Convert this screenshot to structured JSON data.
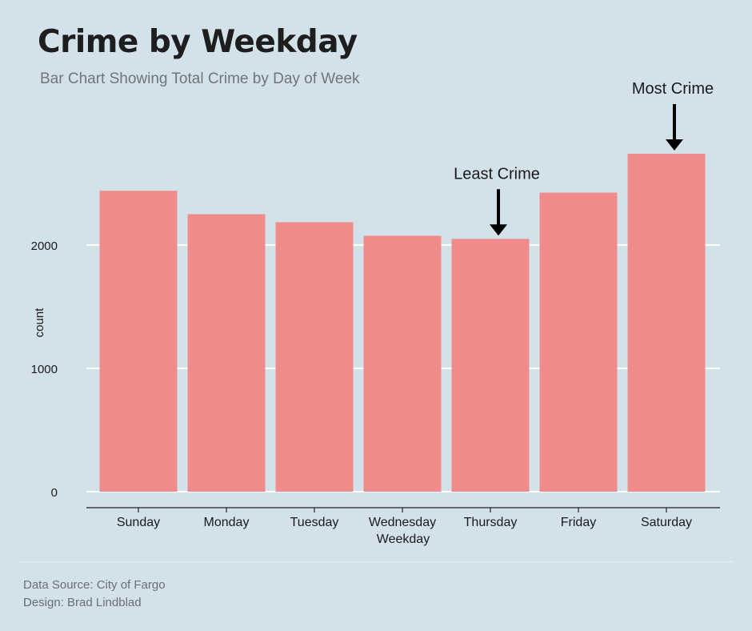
{
  "header": {
    "title": "Crime by Weekday",
    "subtitle": "Bar Chart Showing Total Crime by Day of Week"
  },
  "footer": {
    "source": "Data Source: City of Fargo",
    "design": "Design: Brad Lindblad"
  },
  "chart_data": {
    "type": "bar",
    "categories": [
      "Sunday",
      "Monday",
      "Tuesday",
      "Wednesday",
      "Thursday",
      "Friday",
      "Saturday"
    ],
    "values": [
      2440,
      2250,
      2185,
      2075,
      2050,
      2425,
      2740
    ],
    "xlabel": "Weekday",
    "ylabel": "count",
    "ylim": [
      0,
      2740
    ],
    "yticks": [
      0,
      1000,
      2000
    ],
    "grid": "horizontal",
    "bar_color": "#f08b8b",
    "annotations": [
      {
        "label": "Least Crime",
        "category": "Thursday"
      },
      {
        "label": "Most Crime",
        "category": "Saturday"
      }
    ]
  }
}
